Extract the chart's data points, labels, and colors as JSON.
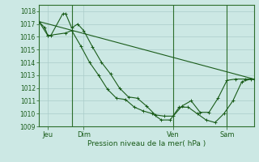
{
  "background_color": "#cce8e4",
  "grid_color": "#aaccca",
  "line_color": "#1a5c1a",
  "vline_color": "#2d6e2d",
  "ylim": [
    1009,
    1018.5
  ],
  "yticks": [
    1009,
    1010,
    1011,
    1012,
    1013,
    1014,
    1015,
    1016,
    1017,
    1018
  ],
  "xlabel": "Pression niveau de la mer( hPa )",
  "xlim": [
    0,
    72
  ],
  "day_positions": [
    3,
    15,
    45,
    63
  ],
  "day_labels": [
    "Jeu",
    "Dim",
    "Ven",
    "Sam"
  ],
  "vline_positions": [
    11,
    45,
    63
  ],
  "series1_x": [
    0,
    2,
    3,
    4,
    8,
    9,
    11,
    13,
    15,
    18,
    21,
    24,
    27,
    30,
    33,
    36,
    39,
    42,
    45,
    48,
    51,
    54,
    57,
    60,
    63,
    66,
    69,
    72
  ],
  "series1_y": [
    1017.2,
    1016.7,
    1016.1,
    1016.1,
    1017.8,
    1017.8,
    1016.7,
    1017.0,
    1016.5,
    1015.2,
    1014.0,
    1013.1,
    1012.0,
    1011.3,
    1011.2,
    1010.6,
    1009.9,
    1009.8,
    1009.8,
    1010.6,
    1011.0,
    1010.1,
    1010.1,
    1011.2,
    1012.6,
    1012.7,
    1012.7,
    1012.7
  ],
  "series2_x": [
    0,
    3,
    9,
    11,
    14,
    17,
    20,
    23,
    26,
    29,
    32,
    35,
    38,
    41,
    44,
    47,
    50,
    53,
    56,
    59,
    62,
    65,
    68,
    71
  ],
  "series2_y": [
    1017.2,
    1016.1,
    1016.3,
    1016.5,
    1015.3,
    1014.0,
    1013.0,
    1011.9,
    1011.2,
    1011.1,
    1010.5,
    1010.2,
    1010.0,
    1009.5,
    1009.5,
    1010.5,
    1010.5,
    1010.0,
    1009.5,
    1009.3,
    1010.0,
    1011.0,
    1012.5,
    1012.7
  ],
  "series3_x": [
    0,
    72
  ],
  "series3_y": [
    1017.2,
    1012.7
  ]
}
